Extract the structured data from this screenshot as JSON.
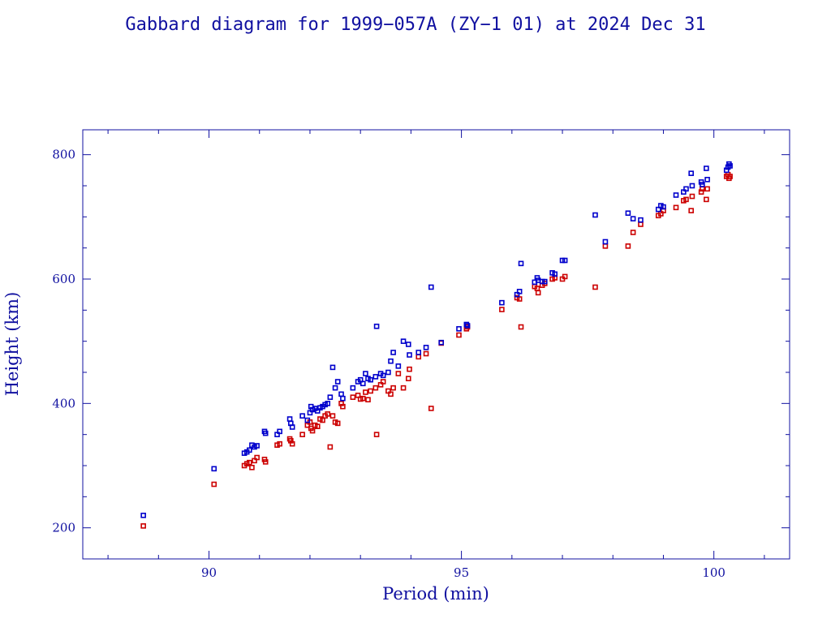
{
  "chart_data": {
    "type": "scatter",
    "title": "Gabbard diagram for 1999−057A (ZY−1 01) at 2024 Dec 31",
    "xlabel": "Period (min)",
    "ylabel": "Height (km)",
    "xlim": [
      87.5,
      101.5
    ],
    "ylim": [
      150,
      840
    ],
    "xticks": [
      90,
      95,
      100
    ],
    "yticks": [
      200,
      400,
      600,
      800
    ],
    "grid": false,
    "colors": {
      "axes": "#1010a0",
      "apogee": "#0000cc",
      "perigee": "#cc0000"
    },
    "points": [
      [
        88.7,
        220,
        203
      ],
      [
        90.1,
        295,
        270
      ],
      [
        90.7,
        320,
        300
      ],
      [
        90.75,
        322,
        303
      ],
      [
        90.8,
        325,
        305
      ],
      [
        90.85,
        333,
        297
      ],
      [
        90.9,
        330,
        308
      ],
      [
        90.95,
        332,
        313
      ],
      [
        91.1,
        355,
        310
      ],
      [
        91.12,
        352,
        306
      ],
      [
        91.35,
        350,
        333
      ],
      [
        91.4,
        355,
        335
      ],
      [
        91.6,
        375,
        343
      ],
      [
        91.62,
        368,
        340
      ],
      [
        91.65,
        362,
        335
      ],
      [
        91.85,
        380,
        350
      ],
      [
        91.95,
        373,
        365
      ],
      [
        92.0,
        385,
        370
      ],
      [
        92.02,
        395,
        360
      ],
      [
        92.05,
        390,
        356
      ],
      [
        92.1,
        392,
        365
      ],
      [
        92.15,
        388,
        363
      ],
      [
        92.2,
        393,
        375
      ],
      [
        92.25,
        395,
        373
      ],
      [
        92.3,
        398,
        380
      ],
      [
        92.35,
        400,
        383
      ],
      [
        92.4,
        410,
        330
      ],
      [
        92.45,
        458,
        380
      ],
      [
        92.5,
        425,
        370
      ],
      [
        92.55,
        435,
        368
      ],
      [
        92.62,
        415,
        400
      ],
      [
        92.65,
        408,
        395
      ],
      [
        92.85,
        425,
        410
      ],
      [
        92.95,
        435,
        413
      ],
      [
        93.0,
        438,
        407
      ],
      [
        93.05,
        432,
        408
      ],
      [
        93.1,
        448,
        418
      ],
      [
        93.15,
        440,
        406
      ],
      [
        93.2,
        438,
        420
      ],
      [
        93.3,
        443,
        425
      ],
      [
        93.32,
        524,
        350
      ],
      [
        93.4,
        448,
        430
      ],
      [
        93.45,
        445,
        435
      ],
      [
        93.55,
        450,
        420
      ],
      [
        93.6,
        468,
        415
      ],
      [
        93.65,
        482,
        425
      ],
      [
        93.75,
        460,
        448
      ],
      [
        93.85,
        500,
        425
      ],
      [
        93.95,
        495,
        440
      ],
      [
        93.97,
        478,
        455
      ],
      [
        94.15,
        482,
        475
      ],
      [
        94.3,
        490,
        480
      ],
      [
        94.4,
        587,
        392
      ],
      [
        94.6,
        498,
        497
      ],
      [
        94.95,
        520,
        510
      ],
      [
        95.1,
        527,
        520
      ],
      [
        95.12,
        525,
        523
      ],
      [
        95.8,
        562,
        551
      ],
      [
        96.1,
        575,
        570
      ],
      [
        96.15,
        580,
        568
      ],
      [
        96.18,
        625,
        523
      ],
      [
        96.45,
        595,
        588
      ],
      [
        96.5,
        602,
        585
      ],
      [
        96.52,
        598,
        578
      ],
      [
        96.6,
        596,
        590
      ],
      [
        96.65,
        596,
        593
      ],
      [
        96.8,
        610,
        600
      ],
      [
        96.85,
        608,
        602
      ],
      [
        97.0,
        630,
        600
      ],
      [
        97.05,
        630,
        604
      ],
      [
        97.65,
        703,
        587
      ],
      [
        97.85,
        660,
        653
      ],
      [
        98.3,
        706,
        653
      ],
      [
        98.4,
        697,
        675
      ],
      [
        98.55,
        695,
        688
      ],
      [
        98.9,
        712,
        702
      ],
      [
        98.95,
        718,
        705
      ],
      [
        99.0,
        716,
        710
      ],
      [
        99.25,
        735,
        715
      ],
      [
        99.4,
        740,
        726
      ],
      [
        99.45,
        745,
        728
      ],
      [
        99.55,
        770,
        710
      ],
      [
        99.57,
        750,
        733
      ],
      [
        99.75,
        756,
        740
      ],
      [
        99.77,
        752,
        745
      ],
      [
        99.85,
        778,
        728
      ],
      [
        99.87,
        760,
        745
      ],
      [
        100.25,
        775,
        765
      ],
      [
        100.28,
        780,
        768
      ],
      [
        100.3,
        785,
        762
      ],
      [
        100.32,
        782,
        765
      ]
    ]
  }
}
